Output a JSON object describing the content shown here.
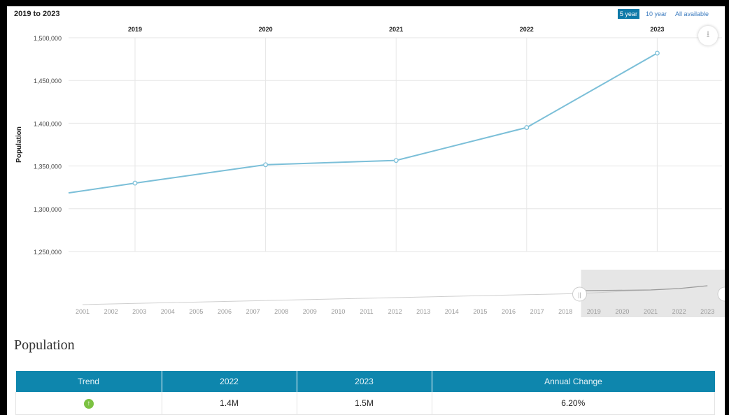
{
  "range_title": "2019 to 2023",
  "range_buttons": [
    "5 year",
    "10 year",
    "All available"
  ],
  "chart_data": {
    "type": "line",
    "ylabel": "Population",
    "x": [
      2018.45,
      2019,
      2020,
      2021,
      2022,
      2023
    ],
    "values": [
      1318500,
      1330000,
      1351500,
      1356500,
      1395000,
      1482000
    ],
    "x_ticks": [
      "2019",
      "2020",
      "2021",
      "2022",
      "2023"
    ],
    "ylim": [
      1250000,
      1500000
    ],
    "y_ticks": [
      "1,500,000",
      "1,450,000",
      "1,400,000",
      "1,350,000",
      "1,300,000",
      "1,250,000"
    ],
    "line_color": "#7bbfd8",
    "navigator": {
      "years": [
        "2001",
        "2002",
        "2003",
        "2004",
        "2005",
        "2006",
        "2007",
        "2008",
        "2009",
        "2010",
        "2011",
        "2012",
        "2013",
        "2014",
        "2015",
        "2016",
        "2017",
        "2018",
        "2019",
        "2020",
        "2021",
        "2022",
        "2023"
      ],
      "selected_range": [
        2018.5,
        2023
      ]
    }
  },
  "population_section": {
    "heading": "Population",
    "headers": [
      "Trend",
      "2022",
      "2023",
      "Annual Change"
    ],
    "row": {
      "val_2022": "1.4M",
      "val_2023": "1.5M",
      "annual_change": "6.20%"
    },
    "trend_icon": "arrow-up-circle-icon"
  },
  "colors": {
    "header_bg": "#0e86ad",
    "active_button": "#0e79a8",
    "trend_up": "#7cc242"
  }
}
